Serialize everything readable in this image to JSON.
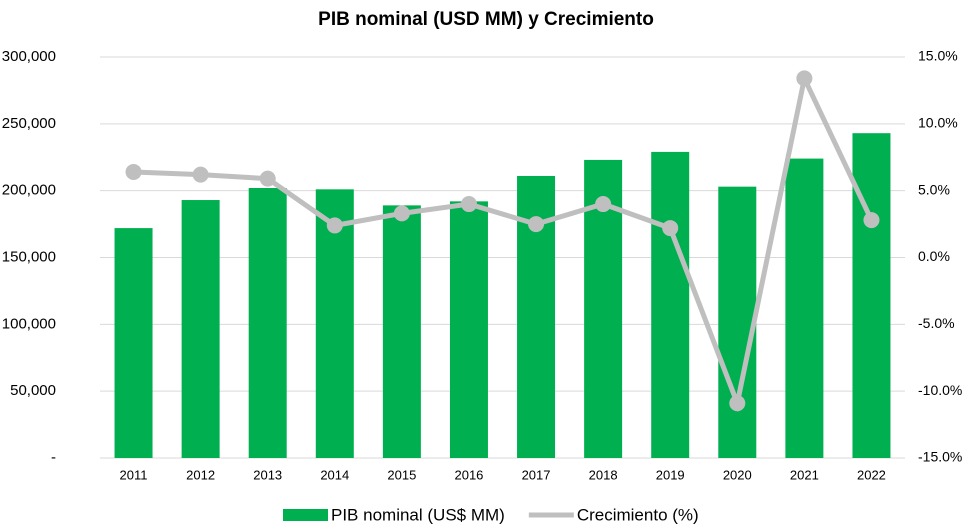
{
  "chart_data": {
    "type": "bar_line",
    "title": "PIB nominal (USD MM) y Crecimiento",
    "categories": [
      "2011",
      "2012",
      "2013",
      "2014",
      "2015",
      "2016",
      "2017",
      "2018",
      "2019",
      "2020",
      "2021",
      "2022"
    ],
    "series": [
      {
        "name": "PIB nominal (US$ MM)",
        "color": "#00b050",
        "type": "bar",
        "values": [
          172000,
          193000,
          202000,
          201000,
          189000,
          192000,
          211000,
          223000,
          229000,
          203000,
          224000,
          243000
        ]
      },
      {
        "name": "Crecimiento (%)",
        "color": "#bfbfbf",
        "type": "line",
        "axis": "y2",
        "values": [
          6.4,
          6.2,
          5.9,
          2.4,
          3.3,
          4.0,
          2.5,
          4.0,
          2.2,
          -10.9,
          13.4,
          2.8
        ]
      }
    ],
    "ylim": [
      0,
      300000
    ],
    "yticks": [
      {
        "value": 0,
        "label": "-"
      },
      {
        "value": 50000,
        "label": "50,000"
      },
      {
        "value": 100000,
        "label": "100,000"
      },
      {
        "value": 150000,
        "label": "150,000"
      },
      {
        "value": 200000,
        "label": "200,000"
      },
      {
        "value": 250000,
        "label": "250,000"
      },
      {
        "value": 300000,
        "label": "300,000"
      }
    ],
    "y2lim": [
      -15,
      15
    ],
    "y2ticks": [
      {
        "value": -15,
        "label": "-15.0%"
      },
      {
        "value": -10,
        "label": "-10.0%"
      },
      {
        "value": -5,
        "label": "-5.0%"
      },
      {
        "value": 0,
        "label": "0.0%"
      },
      {
        "value": 5,
        "label": "5.0%"
      },
      {
        "value": 10,
        "label": "10.0%"
      },
      {
        "value": 15,
        "label": "15.0%"
      }
    ],
    "grid": true,
    "legend": "bottom"
  }
}
